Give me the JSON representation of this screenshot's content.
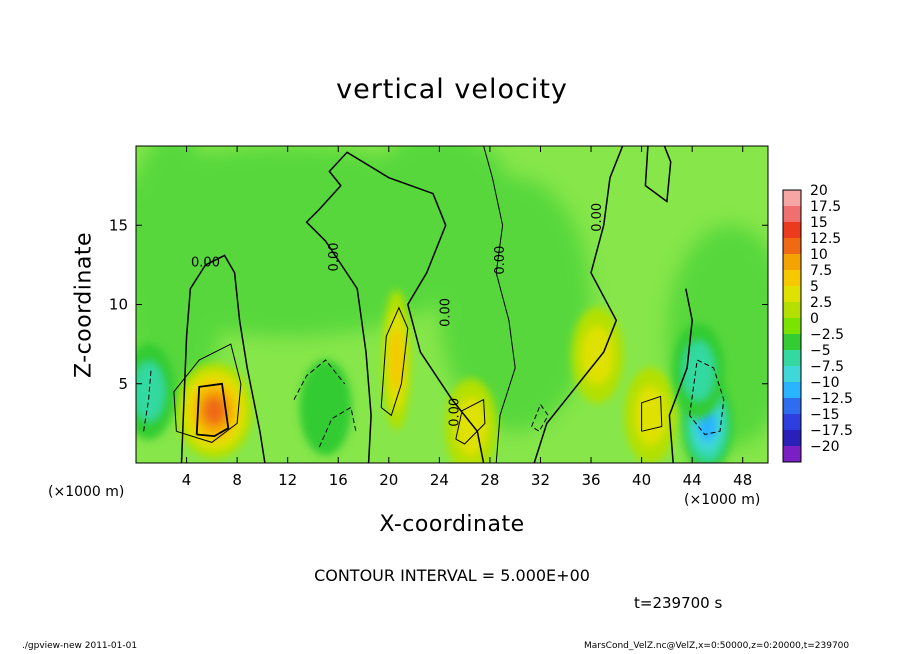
{
  "chart_data": {
    "type": "heatmap",
    "title": "vertical velocity",
    "xlabel": "X-coordinate",
    "ylabel": "Z-coordinate",
    "x_unit_left": "(×1000 m)",
    "x_unit_right": "(×1000 m)",
    "xlim": [
      0,
      50
    ],
    "ylim": [
      0,
      20
    ],
    "x_ticks": [
      4,
      8,
      12,
      16,
      20,
      24,
      28,
      32,
      36,
      40,
      44,
      48
    ],
    "y_ticks": [
      5,
      10,
      15
    ],
    "contour_interval_text": "CONTOUR INTERVAL = 5.000E+00",
    "time_text": "t=239700 s",
    "contour_labels": [
      "0.00",
      "0.00",
      "0.00",
      "0.00",
      "0.00",
      "0.00"
    ],
    "colorbar": {
      "labels": [
        "20",
        "17.5",
        "15",
        "12.5",
        "10",
        "7.5",
        "5",
        "2.5",
        "0",
        "−2.5",
        "−5",
        "−7.5",
        "−10",
        "−12.5",
        "−15",
        "−17.5",
        "−20"
      ],
      "colors": [
        "#f7a6a6",
        "#f07070",
        "#ec3b1c",
        "#ef6a12",
        "#f4a300",
        "#f5c800",
        "#dfe100",
        "#b3e000",
        "#7be300",
        "#33cc33",
        "#33d9a0",
        "#3fd8d8",
        "#2ab3ff",
        "#2f6df0",
        "#2e3fe0",
        "#2a1fb8",
        "#7a1fc4"
      ]
    },
    "features": [
      {
        "x": 6.2,
        "z": 3.3,
        "w": 13
      },
      {
        "x": 20.6,
        "z": 6.5,
        "w": 8
      },
      {
        "x": 26.5,
        "z": 2.3,
        "w": 5
      },
      {
        "x": 36.5,
        "z": 6.8,
        "w": 4
      },
      {
        "x": 40.7,
        "z": 3.0,
        "w": 5
      },
      {
        "x": 45.2,
        "z": 2.4,
        "w": -9
      },
      {
        "x": 44.5,
        "z": 5.8,
        "w": -6
      },
      {
        "x": 1.0,
        "z": 4.5,
        "w": -4
      },
      {
        "x": 15.0,
        "z": 3.5,
        "w": -3
      }
    ]
  },
  "footer": {
    "program": "./gpview-new   2011-01-01",
    "file": "MarsCond_VelZ.nc@VelZ,x=0:50000,z=0:20000,t=239700"
  },
  "colors": {
    "background_field": "#86e64a",
    "contour_line": "#000000"
  }
}
